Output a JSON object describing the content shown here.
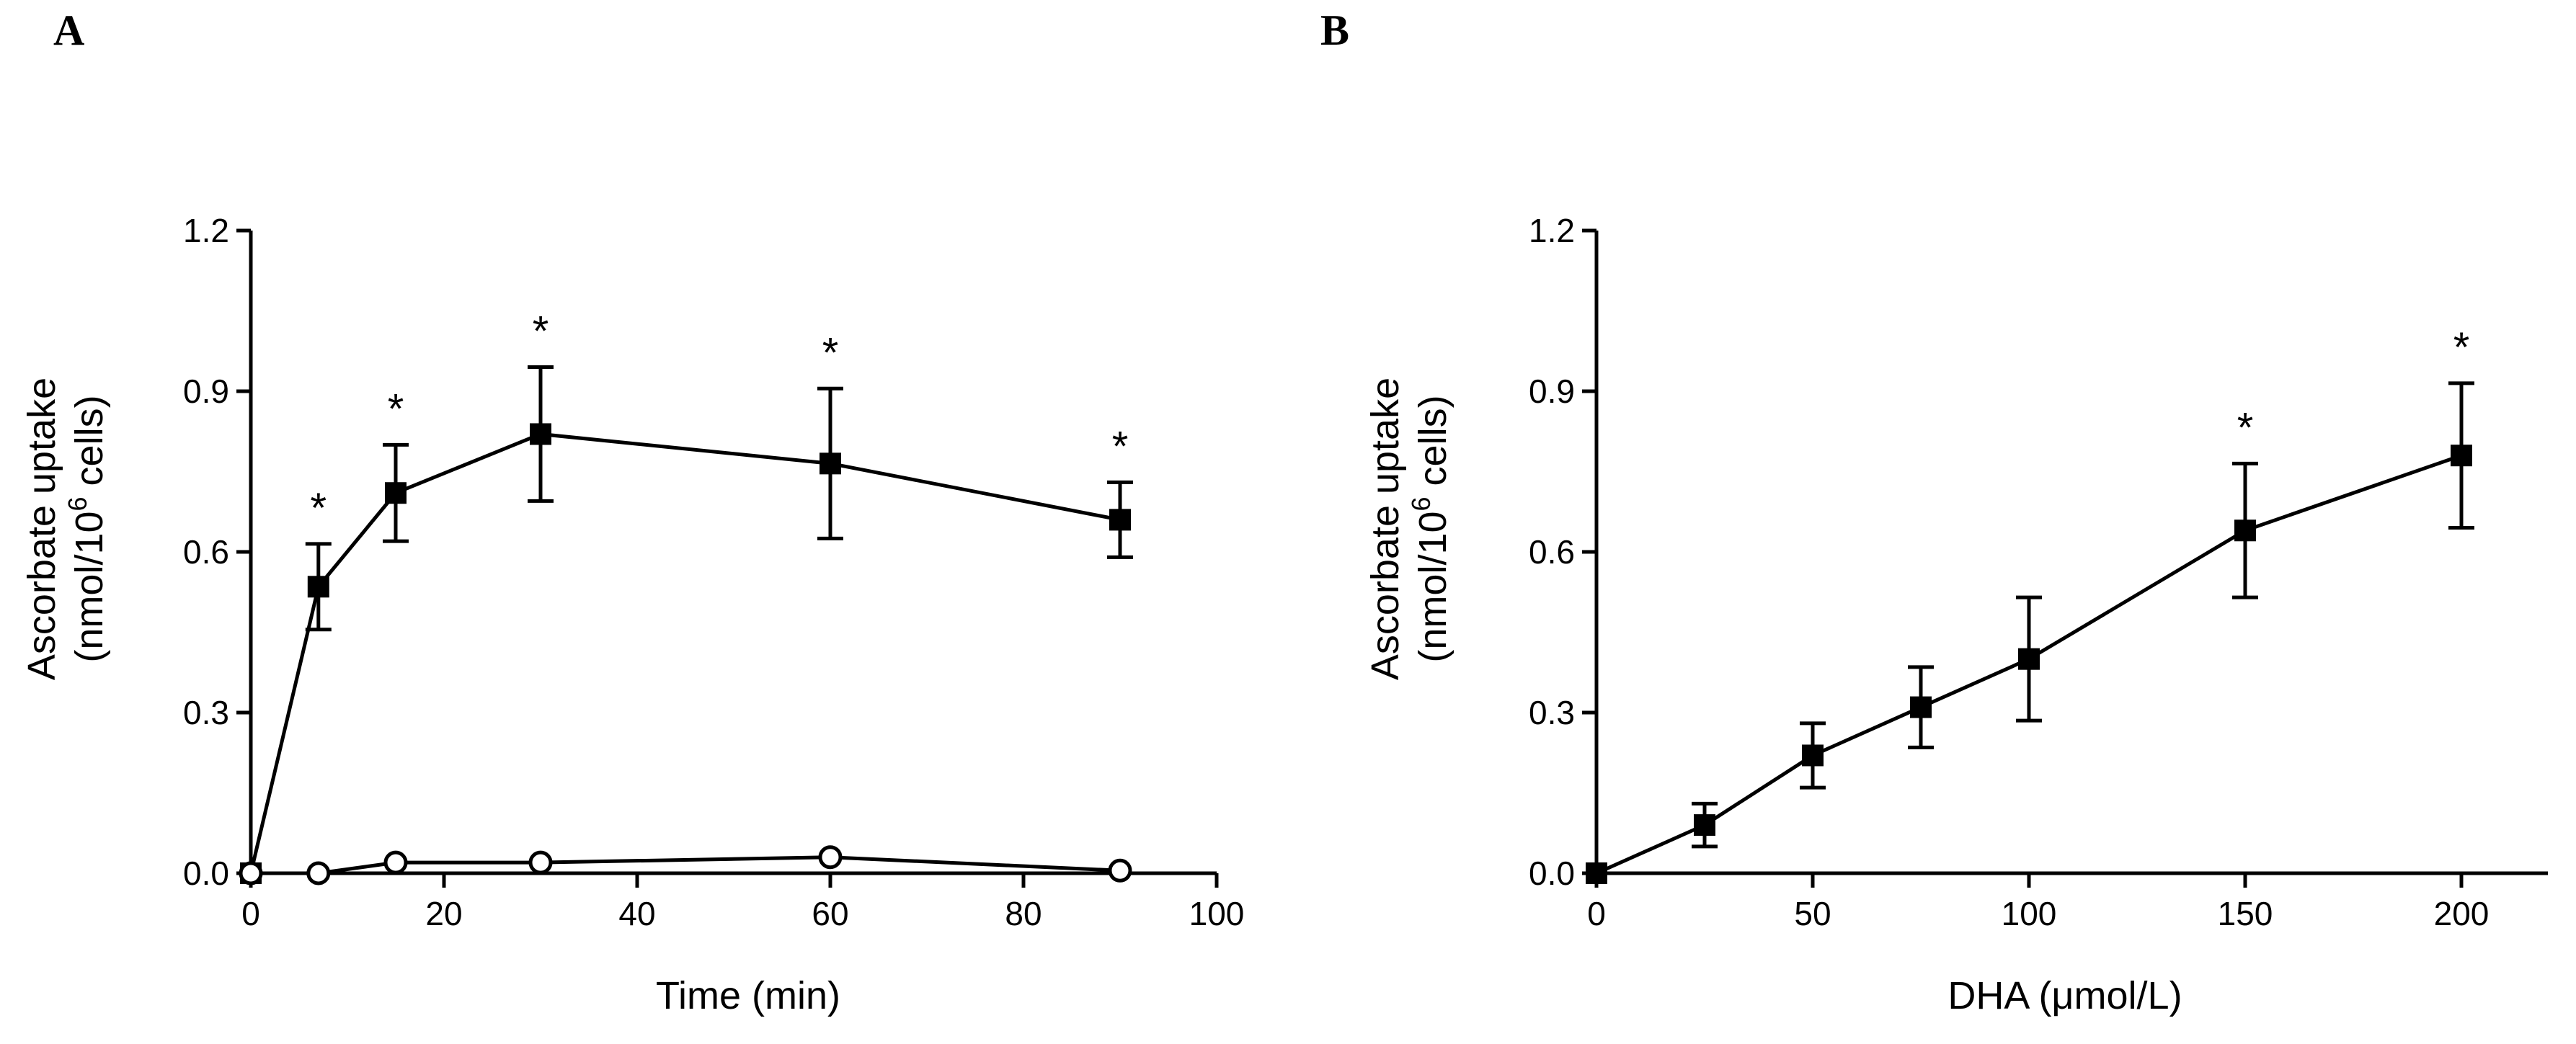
{
  "chart_data": [
    {
      "panel": "A",
      "type": "line",
      "title": "",
      "xlabel": "Time (min)",
      "ylabel_line1": "Ascorbate uptake",
      "ylabel_line2_prefix": "(nmol/10",
      "ylabel_line2_sup": "6",
      "ylabel_line2_suffix": " cells)",
      "xlim": [
        0,
        100
      ],
      "ylim": [
        0,
        1.2
      ],
      "xticks": [
        "0",
        "20",
        "40",
        "60",
        "80",
        "100"
      ],
      "xtick_values": [
        0,
        20,
        40,
        60,
        80,
        100
      ],
      "yticks": [
        "0.0",
        "0.3",
        "0.6",
        "0.9",
        "1.2"
      ],
      "ytick_values": [
        0,
        0.3,
        0.6,
        0.9,
        1.2
      ],
      "grid": false,
      "series": [
        {
          "name": "filled squares",
          "marker": "square-filled",
          "x": [
            0,
            7,
            15,
            30,
            60,
            90
          ],
          "y": [
            0.0,
            0.535,
            0.71,
            0.82,
            0.765,
            0.66
          ],
          "err": [
            0.0,
            0.08,
            0.09,
            0.125,
            0.14,
            0.07
          ],
          "significant": [
            false,
            true,
            true,
            true,
            true,
            true
          ]
        },
        {
          "name": "open circles",
          "marker": "circle-open",
          "x": [
            0,
            7,
            15,
            30,
            60,
            90
          ],
          "y": [
            0.0,
            0.0,
            0.02,
            0.02,
            0.03,
            0.005
          ],
          "err": [
            0,
            0,
            0,
            0,
            0,
            0
          ],
          "significant": [
            false,
            false,
            false,
            false,
            false,
            false
          ]
        }
      ],
      "annotation_symbol": "*"
    },
    {
      "panel": "B",
      "type": "line",
      "title": "",
      "xlabel": "DHA (μmol/L)",
      "ylabel_line1": "Ascorbate uptake",
      "ylabel_line2_prefix": "(nmol/10",
      "ylabel_line2_sup": "6",
      "ylabel_line2_suffix": " cells)",
      "xlim": [
        0,
        220
      ],
      "ylim": [
        0,
        1.2
      ],
      "xticks": [
        "0",
        "50",
        "100",
        "150",
        "200"
      ],
      "xtick_values": [
        0,
        50,
        100,
        150,
        200
      ],
      "yticks": [
        "0.0",
        "0.3",
        "0.6",
        "0.9",
        "1.2"
      ],
      "ytick_values": [
        0,
        0.3,
        0.6,
        0.9,
        1.2
      ],
      "grid": false,
      "series": [
        {
          "name": "filled squares",
          "marker": "square-filled",
          "x": [
            0,
            25,
            50,
            75,
            100,
            150,
            200
          ],
          "y": [
            0.0,
            0.09,
            0.22,
            0.31,
            0.4,
            0.64,
            0.78
          ],
          "err": [
            0.0,
            0.04,
            0.06,
            0.075,
            0.115,
            0.125,
            0.135
          ],
          "significant": [
            false,
            false,
            false,
            false,
            false,
            true,
            true
          ]
        }
      ],
      "annotation_symbol": "*"
    }
  ]
}
